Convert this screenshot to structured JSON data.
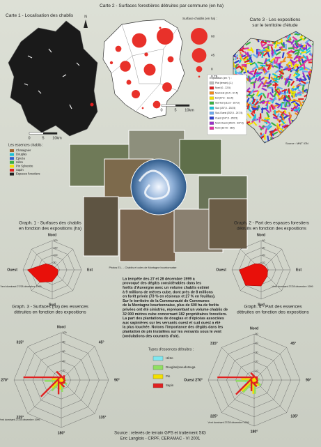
{
  "map1": {
    "title": "Carte 1 - Localisation des chablis",
    "north": "N",
    "legend_title": "Les essences chablis :",
    "legend": [
      {
        "label": "Chataignier",
        "color": "#a0622d"
      },
      {
        "label": "Douglas",
        "color": "#19c3d8"
      },
      {
        "label": "Epicéa",
        "color": "#2f5fd0"
      },
      {
        "label": "Hêtre",
        "color": "#3cb043"
      },
      {
        "label": "Pin Sylvestre",
        "color": "#f3e000"
      },
      {
        "label": "Sapin",
        "color": "#e02020"
      },
      {
        "label": "Espaces forestiers",
        "color": "#222222"
      }
    ],
    "scale": [
      "0",
      "5",
      "10km"
    ]
  },
  "map2": {
    "title": "Carte 2 - Surfaces forestières détruites par commune (en ha)",
    "legend_title": "Surface chablis (en ha) :",
    "legend": [
      60,
      45,
      8,
      {
        "value": 0.75,
        "label": "0,75"
      }
    ],
    "values": [
      60,
      45,
      30,
      25,
      20,
      15,
      12,
      8,
      8,
      5,
      3,
      2,
      1,
      0.75
    ],
    "color": "#e8312a",
    "scale": [
      "0",
      "5",
      "10km"
    ]
  },
  "map3": {
    "title": [
      "Carte 3 - Les expositions",
      "sur le territoire d'étude"
    ],
    "legend_title": "Exposition (en °) :",
    "legend": [
      {
        "label": "Plat (terrain) (-1)",
        "color": "#bdbdbd"
      },
      {
        "label": "Nord (0 - 22,5)",
        "color": "#e02020"
      },
      {
        "label": "Nord-Est (22,5 - 67,5)",
        "color": "#f08a1c"
      },
      {
        "label": "Est (67,5 - 112,5)",
        "color": "#f3e000"
      },
      {
        "label": "Sud-Est (112,5 - 157,5)",
        "color": "#3cb043"
      },
      {
        "label": "Sud (157,5 - 202,5)",
        "color": "#19c3d8"
      },
      {
        "label": "Sud-Ouest (202,5 - 247,5)",
        "color": "#6aa8f0"
      },
      {
        "label": "Ouest (247,5 - 292,5)",
        "color": "#2f3fd0"
      },
      {
        "label": "Nord-Ouest (292,5 - 337,5)",
        "color": "#9a30c8"
      },
      {
        "label": "Nord (337,5 - 360)",
        "color": "#e030a0"
      }
    ],
    "source": "Source : MNT IGN"
  },
  "photo_caption": "Photos E.L. - Chablis et coles de Montagne bourbonnaise",
  "text_block": [
    "La tempête des 27 et 28 décembre 1999 a",
    "provoqué des dégâts considérables dans les",
    "forêts d'Auvergne avec un volume chablis estimé",
    "à 9 millions de mètres cube, dont près de 8 millions",
    "en forêt privée (73 % en résineux et 27 % en feuillus).",
    "Sur le territoire de la Communauté de Communes",
    "de la Montagne bourbonnaise, plus de 600 ha de forêts",
    "privées ont été sinistrés, représentant un volume chablis de",
    "32 000 mètres cube concernant 182 propriétaires forestiers.",
    "La part des plantations de douglas et d'épicéas associées",
    "aux sapinières sur les versants ouest et sud ouest a été",
    "la plus touchée. Notons l'importance des dégâts dans les",
    "plantation de pin installées sur les versants sous le vent",
    "(ondulations des courants d'air)."
  ],
  "graph1": {
    "type": "radar",
    "title": [
      "Graph. 1 - Surfaces des chablis",
      "en fonction des expositions (ha)"
    ],
    "categories": [
      "Nord",
      null,
      "Est",
      null,
      "Sud",
      null,
      "Ouest",
      null
    ],
    "values": [
      30,
      25,
      40,
      50,
      80,
      120,
      170,
      60
    ],
    "color": "#e8100a",
    "rlim": [
      0,
      200
    ],
    "rticks": [
      50,
      100,
      150,
      200
    ],
    "annotation": "Vent dominant 27/28 décembre 1999"
  },
  "graph2": {
    "type": "radar",
    "title": [
      "Graph. 2 - Part des espaces forestiers",
      "détruits en fonction des expositions"
    ],
    "categories": [
      "Nord",
      null,
      "Est",
      null,
      "Sud",
      null,
      "Ouest",
      null
    ],
    "values": [
      8,
      7,
      9,
      12,
      22,
      30,
      30,
      12
    ],
    "color": "#e8100a",
    "rlim": [
      0,
      40
    ],
    "rticks": [
      10,
      20,
      30,
      40
    ],
    "annotation": "Vent dominant 27/28 décembre 1999"
  },
  "graph3": {
    "type": "radar-bars",
    "title": [
      "Graph. 3 - Surfaces (ha) des essences",
      "détruites en fonction des expositions"
    ],
    "categories": [
      "Nord",
      "45°",
      "90°",
      "135°",
      "180°",
      "225°",
      "Ouest 270°",
      "315°"
    ],
    "series": [
      {
        "name": "Hêtre",
        "color": "#7fe8f0",
        "values": [
          5,
          3,
          4,
          6,
          10,
          12,
          15,
          6
        ]
      },
      {
        "name": "Douglas/pseudotsuga",
        "color": "#90e060",
        "values": [
          8,
          6,
          10,
          15,
          25,
          30,
          35,
          10
        ]
      },
      {
        "name": "Pin",
        "color": "#f3e000",
        "values": [
          4,
          3,
          5,
          10,
          20,
          25,
          20,
          6
        ]
      },
      {
        "name": "Sapin",
        "color": "#e02020",
        "values": [
          10,
          6,
          8,
          15,
          30,
          55,
          80,
          20
        ]
      }
    ],
    "rlim": [
      0,
      100
    ],
    "rticks": [
      20,
      40,
      60,
      80,
      100
    ],
    "annotation": "Vent dominant 27/28 décembre 1999"
  },
  "graph4": {
    "type": "radar-bars",
    "title": [
      "Graph. 4 - Part des essences",
      "détruites en fonction des expositions"
    ],
    "categories": [
      "Nord",
      "45°",
      "90°",
      "135°",
      "180°",
      "225°",
      "Ouest 270°",
      "315°"
    ],
    "series": [
      {
        "color": "#7fe8f0",
        "values": [
          3,
          2,
          3,
          4,
          6,
          8,
          10,
          4
        ]
      },
      {
        "color": "#90e060",
        "values": [
          5,
          4,
          6,
          9,
          15,
          18,
          20,
          6
        ]
      },
      {
        "color": "#f3e000",
        "values": [
          3,
          2,
          4,
          8,
          15,
          18,
          14,
          4
        ]
      },
      {
        "color": "#e02020",
        "values": [
          4,
          3,
          4,
          7,
          12,
          25,
          40,
          8
        ]
      }
    ],
    "rlim": [
      0,
      50
    ],
    "rticks": [
      10,
      20,
      30,
      40,
      50
    ],
    "annotation": "Vent dominant 27/28 décembre 1999"
  },
  "species_legend_title": "Types d'essences détruites :",
  "footer": [
    "Source : relevés de terrain GPS et traitement SIG",
    "Eric Langlois - CRPF, CERAMAC - VI 2001"
  ]
}
